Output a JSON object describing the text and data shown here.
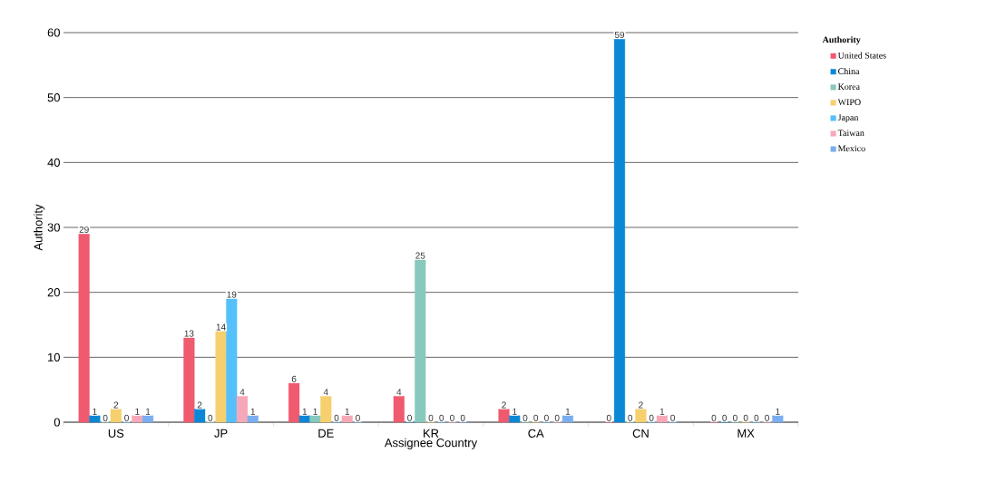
{
  "chart_data": {
    "type": "bar",
    "xlabel": "Assignee Country",
    "ylabel": "Authority",
    "legend_title": "Authority",
    "categories": [
      "US",
      "JP",
      "DE",
      "KR",
      "CA",
      "CN",
      "MX"
    ],
    "series": [
      {
        "name": "United  States",
        "color": "#f05a6e",
        "values": [
          29,
          13,
          6,
          4,
          2,
          0,
          0
        ]
      },
      {
        "name": "China",
        "color": "#0a88d6",
        "values": [
          1,
          2,
          1,
          0,
          1,
          59,
          0
        ]
      },
      {
        "name": "Korea",
        "color": "#88c9bd",
        "values": [
          0,
          0,
          1,
          25,
          0,
          0,
          0
        ]
      },
      {
        "name": "WIPO",
        "color": "#f6d06e",
        "values": [
          2,
          14,
          4,
          0,
          0,
          2,
          0
        ]
      },
      {
        "name": "Japan",
        "color": "#56c0fb",
        "values": [
          0,
          19,
          0,
          0,
          0,
          0,
          0
        ]
      },
      {
        "name": "Taiwan",
        "color": "#f7a8b8",
        "values": [
          1,
          4,
          1,
          0,
          0,
          1,
          0
        ]
      },
      {
        "name": "Mexico",
        "color": "#7aaef0",
        "values": [
          1,
          1,
          0,
          0,
          1,
          0,
          1
        ]
      }
    ],
    "ylim": [
      0,
      60
    ],
    "yticks": [
      0,
      10,
      20,
      30,
      40,
      50,
      60
    ],
    "grid": "y",
    "legend": "top right",
    "data_labels": true
  }
}
